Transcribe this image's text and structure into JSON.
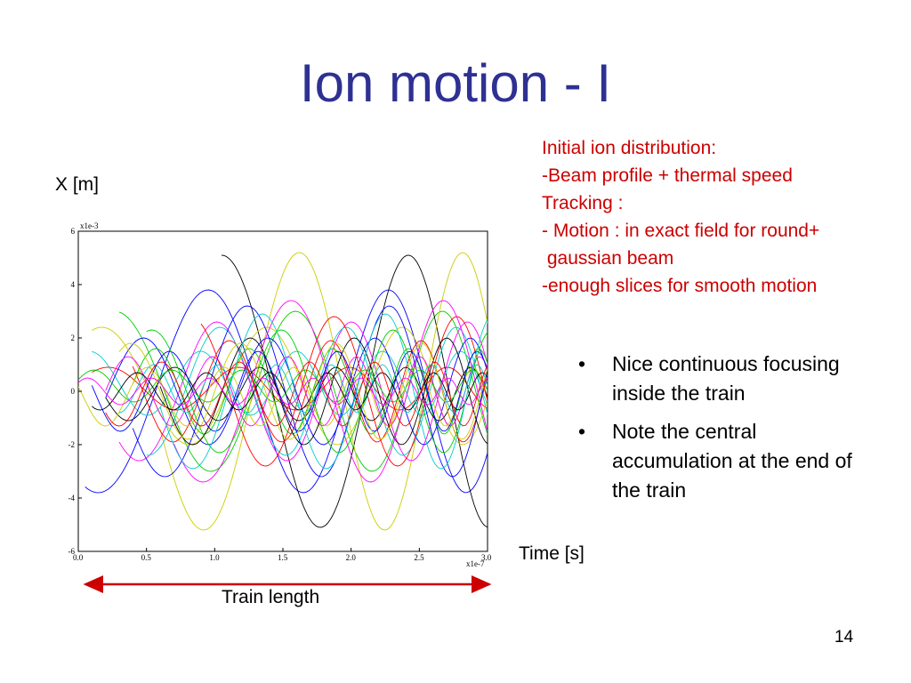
{
  "slide": {
    "title": "Ion motion - I",
    "page_number": "14"
  },
  "notes": {
    "lines": [
      "Initial ion distribution:",
      "-Beam profile + thermal speed",
      "Tracking :",
      "- Motion : in exact field for round+",
      " gaussian beam",
      "-enough slices for smooth motion"
    ],
    "color": "#cc0000"
  },
  "bullets": [
    "Nice continuous focusing inside the train",
    "Note the central accumulation at the end of the train"
  ],
  "labels": {
    "y_axis_outer": "X [m]",
    "x_axis_outer": "Time [s]",
    "train_length": "Train length",
    "train_arrow_color": "#cc0000"
  },
  "chart_data": {
    "type": "line",
    "xlim": [
      0.0,
      3.0
    ],
    "ylim": [
      -6,
      6
    ],
    "x_multiplier": "x1e-7",
    "y_multiplier": "x1e-3",
    "x_ticks": [
      "0.0",
      "0.5",
      "1.0",
      "1.5",
      "2.0",
      "2.5",
      "3.0"
    ],
    "y_ticks": [
      "6",
      "4",
      "2",
      "0",
      "-2",
      "-4",
      "-6"
    ],
    "grid": false,
    "series": [
      {
        "color": "#ff0000",
        "amplitude": 0.8,
        "freq": 0.9,
        "phase": 0.3,
        "offset": 0.1,
        "x0": 0.1
      },
      {
        "color": "#00cc00",
        "amplitude": 3.0,
        "freq": 0.62,
        "phase": 0.5,
        "offset": 0.0,
        "x0": 0.3
      },
      {
        "color": "#0000ff",
        "amplitude": 3.8,
        "freq": 0.55,
        "phase": 4.2,
        "offset": 0.0,
        "x0": 0.05
      },
      {
        "color": "#000000",
        "amplitude": 5.1,
        "freq": 0.52,
        "phase": 4.0,
        "offset": 0.0,
        "x0": 1.05
      },
      {
        "color": "#cccc00",
        "amplitude": 5.2,
        "freq": 0.55,
        "phase": 1.2,
        "offset": 0.0,
        "x0": 0.6
      },
      {
        "color": "#00cccc",
        "amplitude": 1.2,
        "freq": 1.1,
        "phase": 1.0,
        "offset": 0.3,
        "x0": 0.1
      },
      {
        "color": "#ff00ff",
        "amplitude": 2.6,
        "freq": 0.75,
        "phase": 2.5,
        "offset": 0.0,
        "x0": 0.3
      },
      {
        "color": "#0000ff",
        "amplitude": 2.0,
        "freq": 0.9,
        "phase": 5.0,
        "offset": 0.0,
        "x0": 0.2
      },
      {
        "color": "#cccc00",
        "amplitude": 2.2,
        "freq": 0.7,
        "phase": 0.8,
        "offset": 0.2,
        "x0": 0.1
      },
      {
        "color": "#00cc00",
        "amplitude": 1.6,
        "freq": 1.2,
        "phase": 3.3,
        "offset": 0.0,
        "x0": 0.4
      },
      {
        "color": "#ff0000",
        "amplitude": 1.9,
        "freq": 1.0,
        "phase": 0.0,
        "offset": 0.0,
        "x0": 0.4
      },
      {
        "color": "#000000",
        "amplitude": 1.0,
        "freq": 1.3,
        "phase": 1.6,
        "offset": -0.1,
        "x0": 0.2
      },
      {
        "color": "#00cccc",
        "amplitude": 2.4,
        "freq": 0.8,
        "phase": 2.0,
        "offset": 0.0,
        "x0": 0.5
      },
      {
        "color": "#ff00ff",
        "amplitude": 1.3,
        "freq": 1.4,
        "phase": 4.5,
        "offset": 0.0,
        "x0": 0.2
      },
      {
        "color": "#0000ff",
        "amplitude": 3.2,
        "freq": 0.68,
        "phase": 1.8,
        "offset": 0.0,
        "x0": 0.4
      },
      {
        "color": "#00cc00",
        "amplitude": 0.6,
        "freq": 1.6,
        "phase": 0.4,
        "offset": 0.2,
        "x0": 0.0
      },
      {
        "color": "#cccc00",
        "amplitude": 1.1,
        "freq": 1.5,
        "phase": 2.8,
        "offset": -0.2,
        "x0": 0.0
      },
      {
        "color": "#ff0000",
        "amplitude": 2.8,
        "freq": 0.72,
        "phase": 3.8,
        "offset": 0.0,
        "x0": 0.9
      },
      {
        "color": "#000000",
        "amplitude": 2.0,
        "freq": 0.95,
        "phase": 5.5,
        "offset": 0.0,
        "x0": 0.6
      },
      {
        "color": "#00cccc",
        "amplitude": 0.9,
        "freq": 1.8,
        "phase": 1.2,
        "offset": 0.1,
        "x0": 0.3
      },
      {
        "color": "#ff00ff",
        "amplitude": 3.4,
        "freq": 0.6,
        "phase": 0.9,
        "offset": 0.0,
        "x0": 0.7
      },
      {
        "color": "#0000ff",
        "amplitude": 1.5,
        "freq": 1.25,
        "phase": 2.2,
        "offset": 0.0,
        "x0": 0.1
      },
      {
        "color": "#00cc00",
        "amplitude": 2.3,
        "freq": 0.85,
        "phase": 4.8,
        "offset": 0.0,
        "x0": 0.5
      },
      {
        "color": "#000000",
        "amplitude": 0.7,
        "freq": 1.7,
        "phase": 3.0,
        "offset": 0.0,
        "x0": 0.1
      },
      {
        "color": "#cccc00",
        "amplitude": 1.8,
        "freq": 1.05,
        "phase": 5.2,
        "offset": 0.0,
        "x0": 0.3
      },
      {
        "color": "#ff0000",
        "amplitude": 1.2,
        "freq": 1.45,
        "phase": 1.9,
        "offset": -0.1,
        "x0": 0.2
      },
      {
        "color": "#00cccc",
        "amplitude": 2.9,
        "freq": 0.78,
        "phase": 0.2,
        "offset": 0.0,
        "x0": 0.6
      },
      {
        "color": "#ff00ff",
        "amplitude": 0.5,
        "freq": 2.0,
        "phase": 0.7,
        "offset": 0.0,
        "x0": 0.0
      }
    ]
  }
}
